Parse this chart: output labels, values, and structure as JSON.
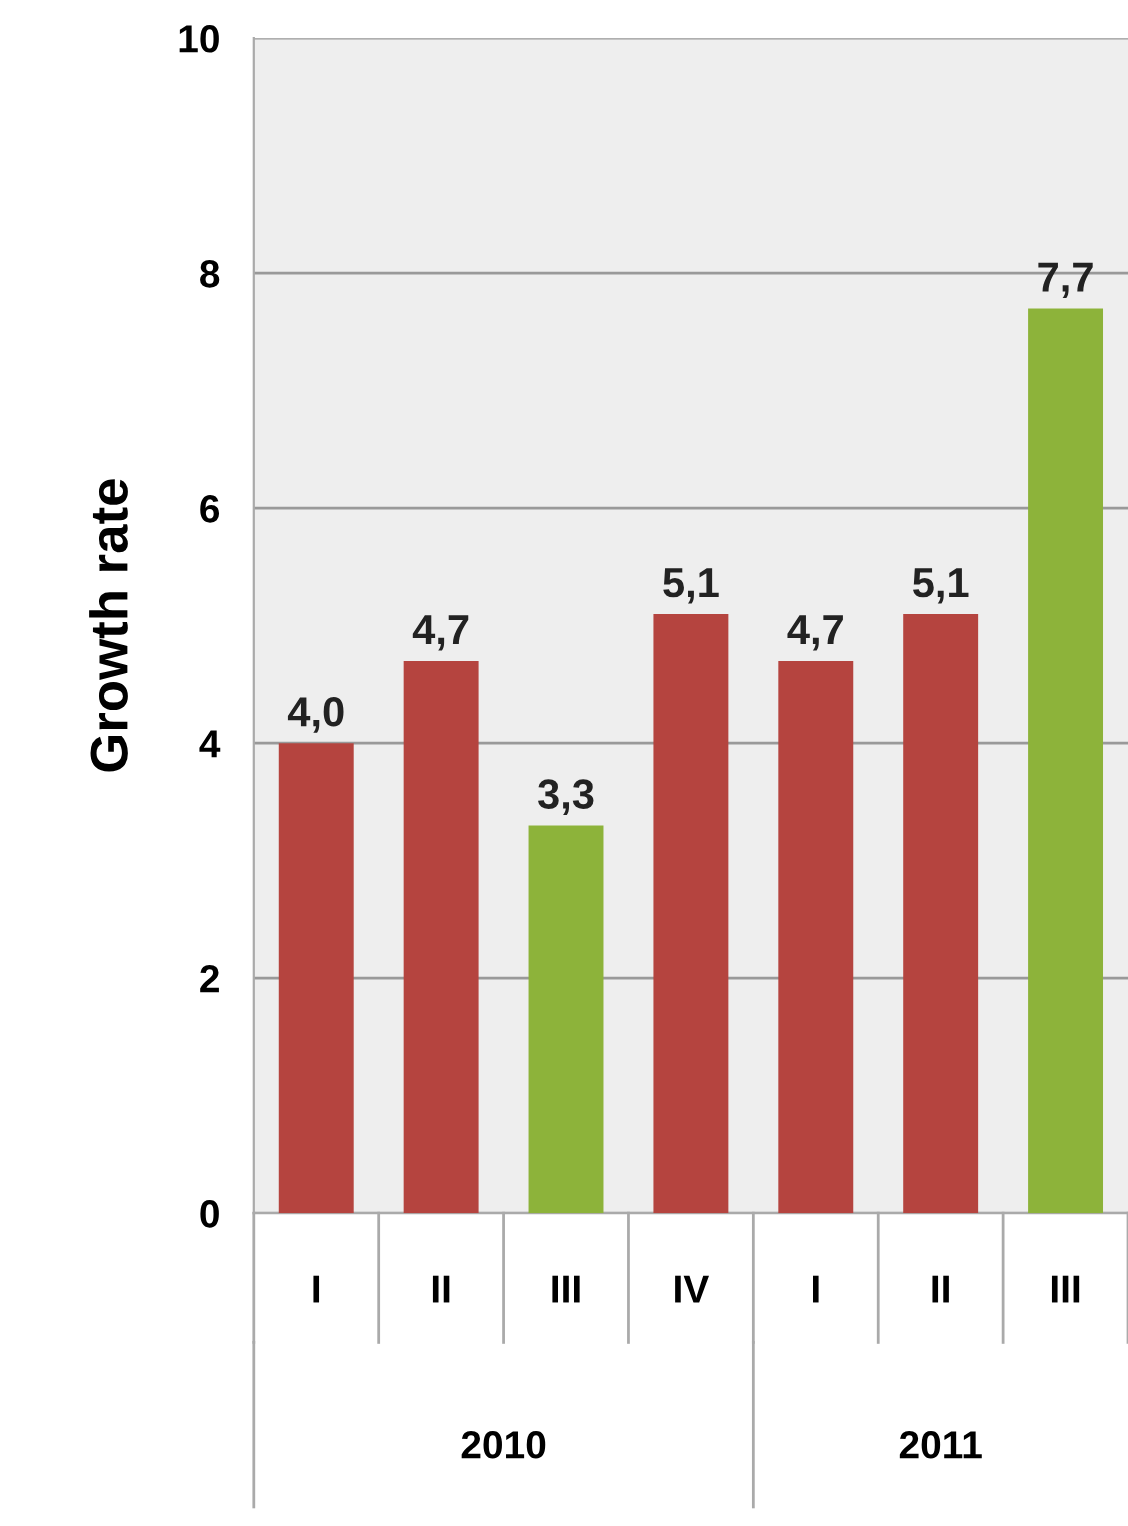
{
  "chart_data": {
    "type": "bar",
    "ylabel": "Growth rate",
    "categories": [
      "I",
      "II",
      "III",
      "IV",
      "I",
      "II",
      "III"
    ],
    "values": [
      4.0,
      4.7,
      3.3,
      5.1,
      4.7,
      5.1,
      7.7
    ],
    "colors": [
      "#b5443f",
      "#b5443f",
      "#8db33a",
      "#b5443f",
      "#b5443f",
      "#b5443f",
      "#8db33a"
    ],
    "value_labels": [
      "4,0",
      "4,7",
      "3,3",
      "5,1",
      "4,7",
      "5,1",
      "7,7"
    ],
    "ylim": [
      0,
      10
    ],
    "yticks": [
      0,
      2,
      4,
      6,
      8,
      10
    ],
    "grid": "y",
    "annotations": [
      "2010",
      "2011"
    ]
  }
}
